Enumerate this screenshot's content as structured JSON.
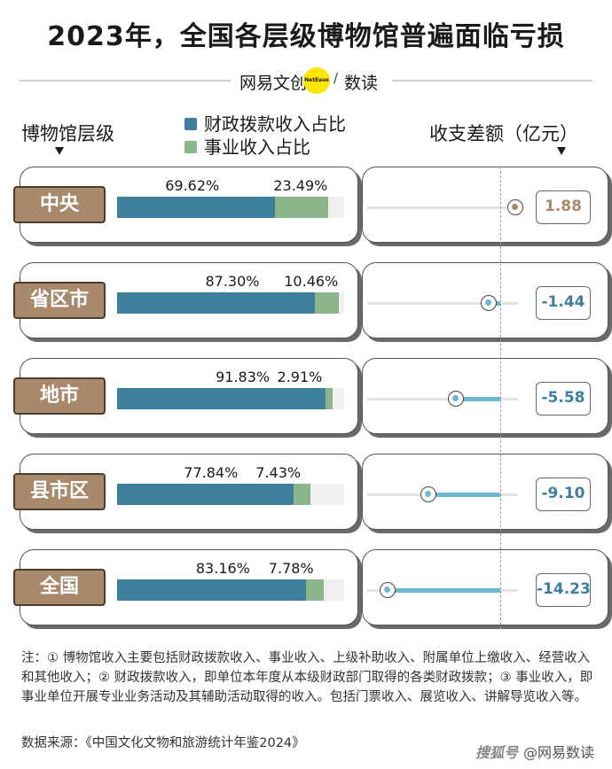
{
  "title": "2023年，全国各层级博物馆普遍面临亏损",
  "brand": {
    "left": "网易文创",
    "badge": "NetEase",
    "slash": "/",
    "right": "数读"
  },
  "headers": {
    "left": "博物馆层级",
    "right": "收支差额（亿元）"
  },
  "chart_data": {
    "type": "bar",
    "categories": [
      "中央",
      "省区市",
      "地市",
      "县市区",
      "全国"
    ],
    "series": [
      {
        "name": "财政拨款收入占比",
        "color": "#3f7f9e",
        "values": [
          69.62,
          87.3,
          91.83,
          77.84,
          83.16
        ],
        "labels": [
          "69.62%",
          "87.30%",
          "91.83%",
          "77.84%",
          "83.16%"
        ]
      },
      {
        "name": "事业收入占比",
        "color": "#8bb58a",
        "values": [
          23.49,
          10.46,
          2.91,
          7.43,
          7.78
        ],
        "labels": [
          "23.49%",
          "10.46%",
          "2.91%",
          "7.43%",
          "7.78%"
        ]
      }
    ],
    "balance": {
      "unit": "亿元",
      "values": [
        1.88,
        -1.44,
        -5.58,
        -9.1,
        -14.23
      ],
      "labels": [
        "1.88",
        "-1.44",
        "-5.58",
        "-9.10",
        "-14.23"
      ],
      "positive_color": "#a8896b",
      "negative_color": "#3f7f9e",
      "line_color": "#6fb6d2"
    },
    "ylim": [
      0,
      100
    ]
  },
  "notes": "注：① 博物馆收入主要包括财政拨款收入、事业收入、上级补助收入、附属单位上缴收入、经营收入和其他收入；② 财政拨款收入，即单位本年度从本级财政部门取得的各类财政拨款；③ 事业收入，即事业单位开展专业业务活动及其辅助活动取得的收入。包括门票收入、展览收入、讲解导览收入等。",
  "source": "数据来源：《中国文化文物和旅游统计年鉴2024》",
  "watermark": {
    "left": "搜狐号",
    "right": "@网易数读"
  }
}
